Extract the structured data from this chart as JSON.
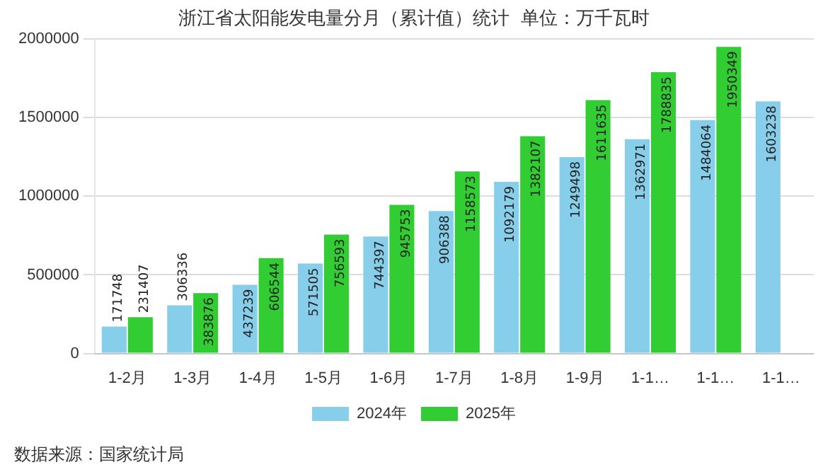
{
  "chart_data": {
    "type": "bar",
    "title": "浙江省太阳能发电量分月（累计值）统计  单位：万千瓦时",
    "categories": [
      "1-2月",
      "1-3月",
      "1-4月",
      "1-5月",
      "1-6月",
      "1-7月",
      "1-8月",
      "1-9月",
      "1-1…",
      "1-1…",
      "1-1…"
    ],
    "series": [
      {
        "name": "2024年",
        "color": "#87ceeb",
        "values": [
          171748,
          306336,
          437239,
          571505,
          744397,
          906388,
          1092179,
          1249498,
          1362971,
          1484064,
          1603238
        ]
      },
      {
        "name": "2025年",
        "color": "#32cd32",
        "values": [
          231407,
          383876,
          606544,
          756593,
          945753,
          1158573,
          1382107,
          1611635,
          1788835,
          1950349,
          null
        ]
      }
    ],
    "ylim": [
      0,
      2000000
    ],
    "yticks": [
      0,
      500000,
      1000000,
      1500000,
      2000000
    ],
    "grid": "y",
    "legend": "bottom",
    "data_labels": true,
    "annotations": [
      "数据来源：国家统计局"
    ]
  }
}
